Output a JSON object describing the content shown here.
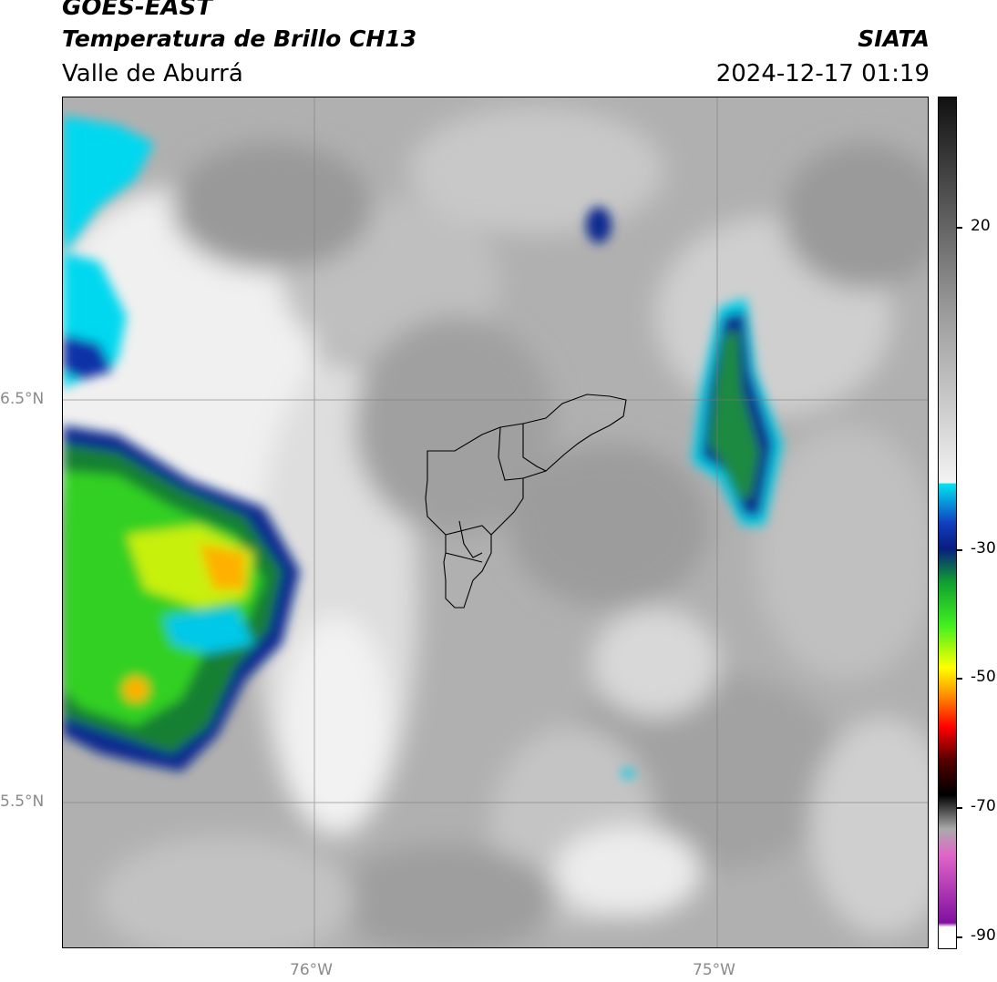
{
  "header": {
    "satellite": "GOES-EAST",
    "product": "Temperatura de Brillo CH13",
    "region": "Valle de Aburrá",
    "brand": "SIATA",
    "timestamp": "2024-12-17 01:19"
  },
  "map": {
    "lat_labels": [
      "6.5°N",
      "5.5°N"
    ],
    "lon_labels": [
      "76°W",
      "75°W"
    ],
    "features": [
      "cloud-top-temperature-field",
      "convective-cloud-west",
      "convective-cloud-east",
      "aburra-valley-municipal-boundaries"
    ]
  },
  "colorbar": {
    "tick_labels": [
      "20",
      "-30",
      "-50",
      "-70",
      "-90"
    ],
    "colors": {
      "warm": "#111111",
      "mid": "#9a9a9a",
      "cold_white": "#f2f2f2",
      "cyan": "#00e5f0",
      "blue": "#1040c0",
      "navy": "#081c80",
      "green": "#10a030",
      "lime": "#40f020",
      "yellow": "#ffff00",
      "orange": "#ff9800",
      "red": "#ff0000",
      "darkred": "#500000",
      "pink": "#e066c8",
      "purple": "#8010a0"
    }
  }
}
